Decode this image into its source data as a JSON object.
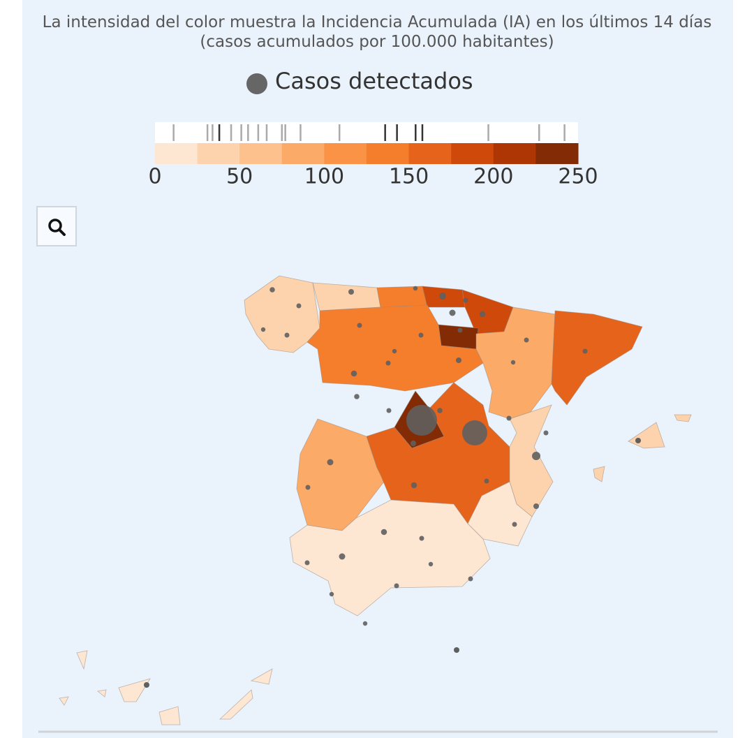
{
  "header": {
    "title": "La intensidad del color muestra la Incidencia Acumulada (IA) en los últimos 14 días (casos acumulados por 100.000 habitantes)"
  },
  "legend": {
    "label": "Casos detectados"
  },
  "scale": {
    "lim": [
      0,
      250
    ],
    "ticks": [
      0,
      50,
      100,
      150,
      200,
      250
    ],
    "colors": [
      "#fde6d2",
      "#fdd3ad",
      "#fdc18d",
      "#fcaa68",
      "#fb9346",
      "#f47e2c",
      "#e5631a",
      "#cf490b",
      "#ae3604",
      "#832b04"
    ],
    "distribution": [
      11,
      31,
      34,
      38,
      45,
      51,
      55,
      61,
      66,
      75,
      77,
      86,
      109,
      136,
      143,
      154,
      158,
      197,
      227,
      242
    ]
  },
  "regions": {
    "values": [
      30,
      35,
      130,
      175,
      190,
      240,
      135,
      85,
      150,
      245,
      90,
      165,
      45,
      15,
      12,
      40,
      15
    ]
  },
  "points": {
    "values": [
      350,
      300,
      250,
      300,
      400,
      250,
      600,
      300,
      500,
      450,
      300,
      250,
      300,
      300,
      400,
      450,
      300,
      350,
      300,
      12000,
      350,
      400,
      8000,
      300,
      300,
      250,
      300,
      300,
      900,
      500,
      450,
      300,
      300,
      400,
      300,
      450,
      300,
      500,
      300,
      250,
      300,
      250,
      300,
      250
    ]
  }
}
